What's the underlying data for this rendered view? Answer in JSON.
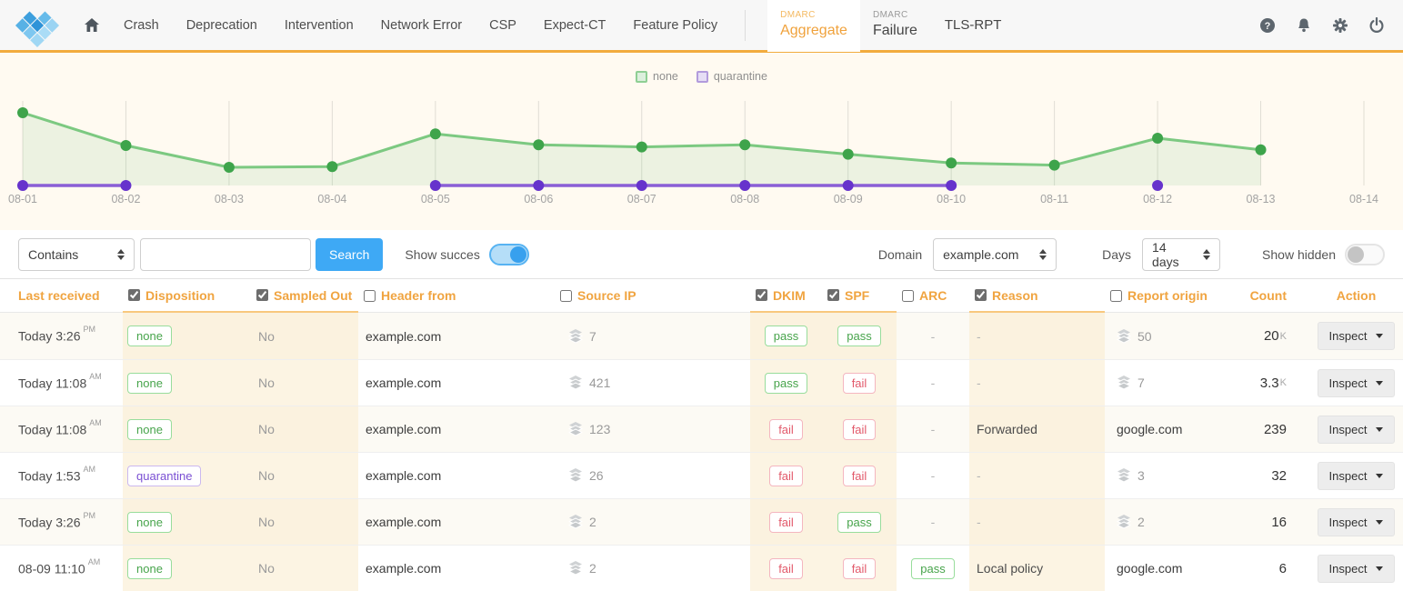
{
  "nav": {
    "items": [
      "Crash",
      "Deprecation",
      "Intervention",
      "Network Error",
      "CSP",
      "Expect-CT",
      "Feature Policy"
    ],
    "dmarc_aggregate": {
      "super": "DMARC",
      "label": "Aggregate"
    },
    "dmarc_failure": {
      "super": "DMARC",
      "label": "Failure"
    },
    "tls_rpt": "TLS-RPT",
    "action_icons": [
      "help-icon",
      "notifications-icon",
      "settings-icon",
      "power-icon"
    ],
    "accent_color": "#f2ab3e"
  },
  "chart_data": {
    "type": "area",
    "x": [
      "08-01",
      "08-02",
      "08-03",
      "08-04",
      "08-05",
      "08-06",
      "08-07",
      "08-08",
      "08-09",
      "08-10",
      "08-11",
      "08-12",
      "08-13",
      "08-14"
    ],
    "series": [
      {
        "name": "none",
        "color": "#7cc981",
        "point_color": "#3ea44b",
        "fill": "rgba(126,201,131,0.15)",
        "values": [
          100,
          55,
          25,
          26,
          71,
          56,
          53,
          56,
          43,
          31,
          28,
          65,
          49,
          null
        ]
      },
      {
        "name": "quarantine",
        "color": "#8a5fd6",
        "point_color": "#6633cc",
        "values": [
          0,
          0,
          null,
          null,
          0,
          0,
          0,
          0,
          0,
          0,
          null,
          0,
          null,
          null
        ]
      }
    ],
    "ylim": [
      0,
      110
    ],
    "grid": "vertical-only",
    "legend_position": "top-center",
    "baseline_color": "#e0ddd4"
  },
  "filters": {
    "match_type": "Contains",
    "search_value": "",
    "search_label": "Search",
    "show_success_label": "Show succes",
    "show_success_on": true,
    "domain_label": "Domain",
    "domain_value": "example.com",
    "days_label": "Days",
    "days_value": "14 days",
    "show_hidden_label": "Show hidden",
    "show_hidden_on": false
  },
  "table": {
    "columns": [
      {
        "label": "Last received",
        "checkbox": false,
        "checked": false,
        "highlight": false
      },
      {
        "label": "Disposition",
        "checkbox": true,
        "checked": true,
        "highlight": true
      },
      {
        "label": "Sampled Out",
        "checkbox": true,
        "checked": true,
        "highlight": true
      },
      {
        "label": "Header from",
        "checkbox": true,
        "checked": false,
        "highlight": false
      },
      {
        "label": "Source IP",
        "checkbox": true,
        "checked": false,
        "highlight": false
      },
      {
        "label": "DKIM",
        "checkbox": true,
        "checked": true,
        "highlight": true
      },
      {
        "label": "SPF",
        "checkbox": true,
        "checked": true,
        "highlight": true
      },
      {
        "label": "ARC",
        "checkbox": true,
        "checked": false,
        "highlight": false
      },
      {
        "label": "Reason",
        "checkbox": true,
        "checked": true,
        "highlight": true
      },
      {
        "label": "Report origin",
        "checkbox": true,
        "checked": false,
        "highlight": false
      },
      {
        "label": "Count",
        "checkbox": false,
        "checked": false,
        "highlight": false
      },
      {
        "label": "Action",
        "checkbox": false,
        "checked": false,
        "highlight": false
      }
    ],
    "action_label": "Inspect",
    "rows": [
      {
        "received": {
          "text": "Today 3:26",
          "sup": "PM"
        },
        "disposition": "none",
        "sampled_out": "No",
        "header_from": "example.com",
        "source_ip": {
          "icon": "layers-icon",
          "text": "7"
        },
        "dkim": "pass",
        "spf": "pass",
        "arc": "-",
        "reason": "-",
        "report_origin": {
          "icon": "layers-icon",
          "text": "50"
        },
        "count": {
          "value": "20",
          "suffix": "K"
        },
        "action": "Inspect"
      },
      {
        "received": {
          "text": "Today 11:08",
          "sup": "AM"
        },
        "disposition": "none",
        "sampled_out": "No",
        "header_from": "example.com",
        "source_ip": {
          "icon": "layers-icon",
          "text": "421"
        },
        "dkim": "pass",
        "spf": "fail",
        "arc": "-",
        "reason": "-",
        "report_origin": {
          "icon": "layers-icon",
          "text": "7"
        },
        "count": {
          "value": "3.3",
          "suffix": "K"
        },
        "action": "Inspect"
      },
      {
        "received": {
          "text": "Today 11:08",
          "sup": "AM"
        },
        "disposition": "none",
        "sampled_out": "No",
        "header_from": "example.com",
        "source_ip": {
          "icon": "layers-icon",
          "text": "123"
        },
        "dkim": "fail",
        "spf": "fail",
        "arc": "-",
        "reason": "Forwarded",
        "report_origin": {
          "icon": null,
          "text": "google.com"
        },
        "count": {
          "value": "239",
          "suffix": ""
        },
        "action": "Inspect"
      },
      {
        "received": {
          "text": "Today 1:53",
          "sup": "AM"
        },
        "disposition": "quarantine",
        "sampled_out": "No",
        "header_from": "example.com",
        "source_ip": {
          "icon": "layers-icon",
          "text": "26"
        },
        "dkim": "fail",
        "spf": "fail",
        "arc": "-",
        "reason": "-",
        "report_origin": {
          "icon": "layers-icon",
          "text": "3"
        },
        "count": {
          "value": "32",
          "suffix": ""
        },
        "action": "Inspect"
      },
      {
        "received": {
          "text": "Today 3:26",
          "sup": "PM"
        },
        "disposition": "none",
        "sampled_out": "No",
        "header_from": "example.com",
        "source_ip": {
          "icon": "layers-icon",
          "text": "2"
        },
        "dkim": "fail",
        "spf": "pass",
        "arc": "-",
        "reason": "-",
        "report_origin": {
          "icon": "layers-icon",
          "text": "2"
        },
        "count": {
          "value": "16",
          "suffix": ""
        },
        "action": "Inspect"
      },
      {
        "received": {
          "text": "08-09 11:10",
          "sup": "AM"
        },
        "disposition": "none",
        "sampled_out": "No",
        "header_from": "example.com",
        "source_ip": {
          "icon": "layers-icon",
          "text": "2"
        },
        "dkim": "fail",
        "spf": "fail",
        "arc": "pass",
        "reason": "Local policy",
        "report_origin": {
          "icon": null,
          "text": "google.com"
        },
        "count": {
          "value": "6",
          "suffix": ""
        },
        "action": "Inspect"
      }
    ]
  }
}
